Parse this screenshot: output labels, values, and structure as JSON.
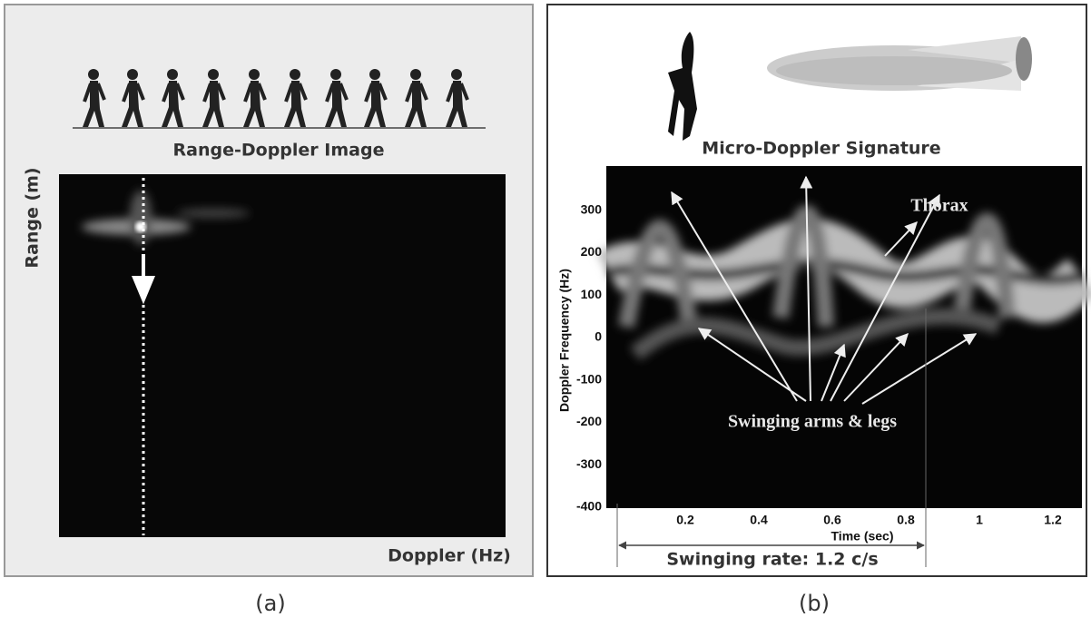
{
  "panel_a": {
    "title": "Range-Doppler Image",
    "y_label": "Range (m)",
    "x_label": "Doppler (Hz)",
    "caption": "(a)"
  },
  "panel_b": {
    "title": "Micro-Doppler Signature",
    "y_label": "Doppler Frequency (Hz)",
    "x_label": "Time (sec)",
    "yticks": [
      300,
      200,
      100,
      0,
      -100,
      -200,
      -300,
      -400
    ],
    "xticks": [
      0.2,
      0.4,
      0.6,
      0.8,
      1,
      1.2
    ],
    "annotations": {
      "thorax": "Thorax",
      "limbs": "Swinging arms & legs",
      "rate": "Swinging rate: 1.2 c/s"
    },
    "caption": "(b)"
  }
}
